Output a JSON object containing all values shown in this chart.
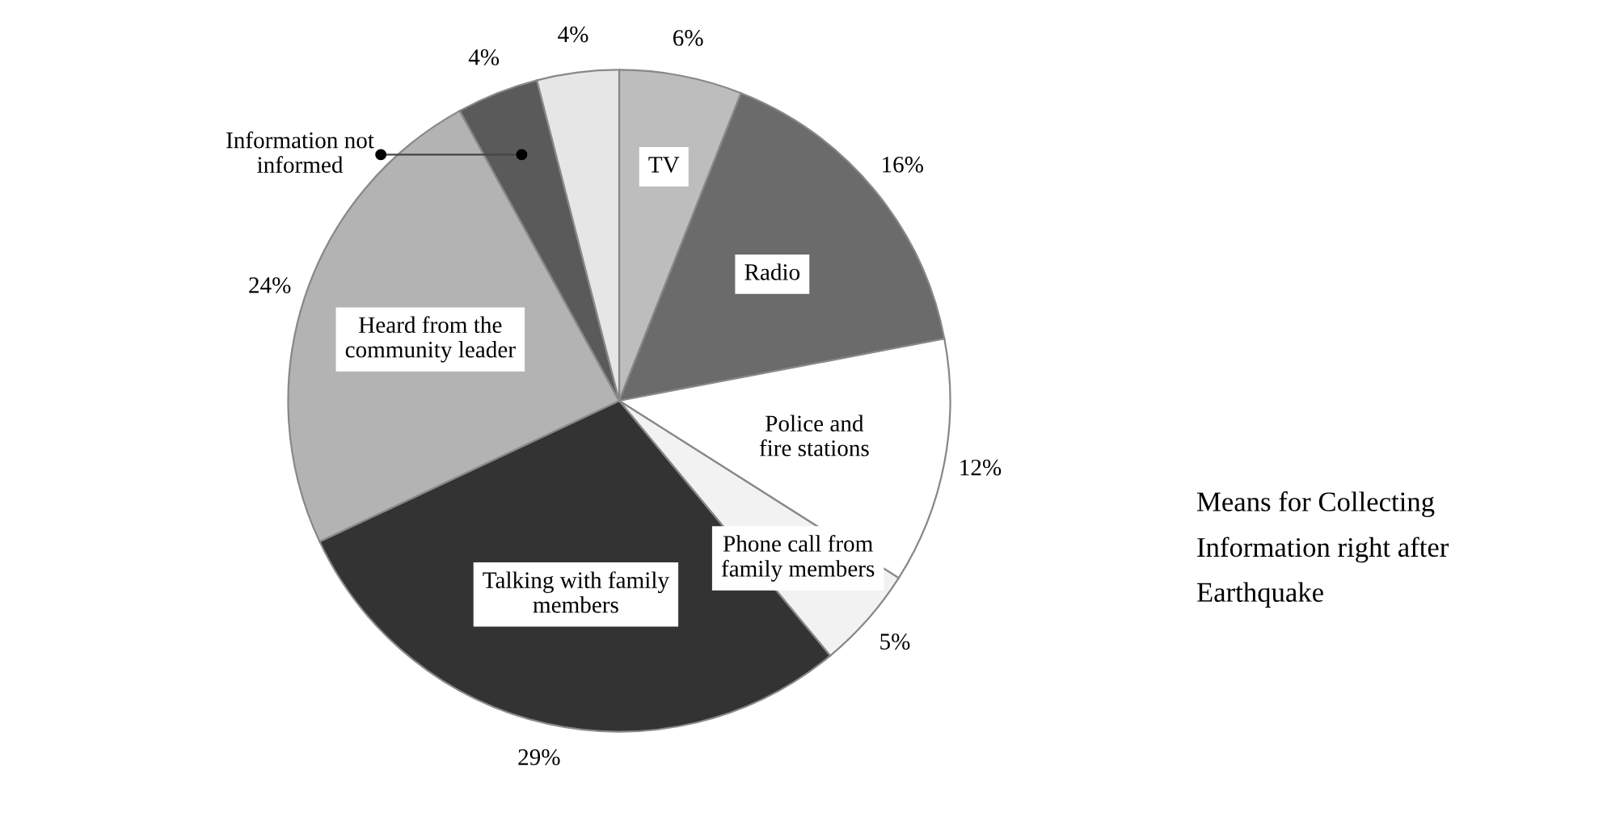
{
  "chart_data": {
    "type": "pie",
    "title": "Means for Collecting\nInformation right after\nEarthquake",
    "categories": [
      "TV",
      "Radio",
      "Police and\nfire stations",
      "Phone call from\nfamily members",
      "Talking with family\nmembers",
      "Heard from the\ncommunity leader",
      "Information not\ninformed",
      null
    ],
    "values": [
      6,
      16,
      12,
      5,
      29,
      24,
      4,
      4
    ],
    "value_labels": [
      "6%",
      "16%",
      "12%",
      "5%",
      "29%",
      "24%",
      "4%",
      "4%"
    ],
    "colors": [
      "#bdbdbd",
      "#6b6b6b",
      "#ffffff",
      "#f2f2f2",
      "#333333",
      "#b3b3b3",
      "#5a5a5a",
      "#e6e6e6"
    ]
  }
}
